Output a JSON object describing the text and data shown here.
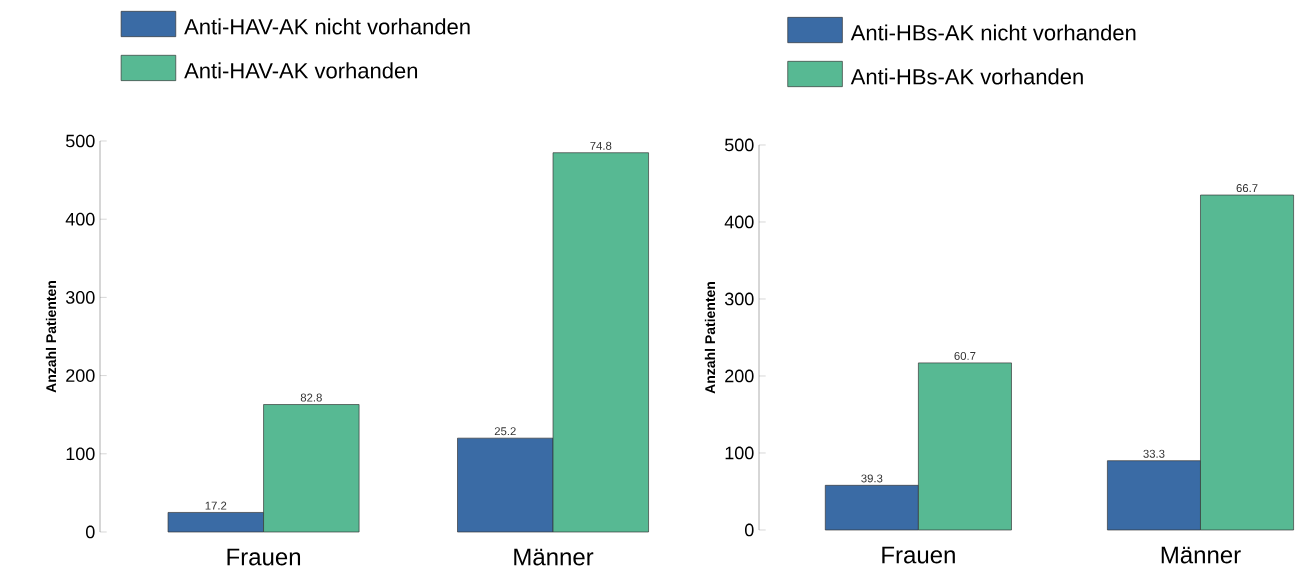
{
  "chart_data": [
    {
      "type": "bar",
      "categories": [
        "Frauen",
        "Männer"
      ],
      "ylabel": "Anzahl Patienten",
      "ylim": [
        0,
        500
      ],
      "yticks": [
        0,
        100,
        200,
        300,
        400,
        500
      ],
      "legend": "top",
      "grid": false,
      "series": [
        {
          "name": "Anti-HAV-AK nicht vorhanden",
          "color": "#3a6ba5",
          "values": [
            25,
            120
          ]
        },
        {
          "name": "Anti-HAV-AK vorhanden",
          "color": "#57b993",
          "values": [
            163,
            485
          ]
        }
      ],
      "annotations": [
        "17.2",
        "82.8",
        "25.2",
        "74.8"
      ]
    },
    {
      "type": "bar",
      "categories": [
        "Frauen",
        "Männer"
      ],
      "ylabel": "Anzahl Patienten",
      "ylim": [
        0,
        500
      ],
      "yticks": [
        0,
        100,
        200,
        300,
        400,
        500
      ],
      "legend": "top",
      "grid": false,
      "series": [
        {
          "name": "Anti-HBs-AK nicht vorhanden",
          "color": "#3a6ba5",
          "values": [
            58,
            90
          ]
        },
        {
          "name": "Anti-HBs-AK vorhanden",
          "color": "#57b993",
          "values": [
            217,
            435
          ]
        }
      ],
      "annotations": [
        "39.3",
        "60.7",
        "33.3",
        "66.7"
      ]
    }
  ]
}
